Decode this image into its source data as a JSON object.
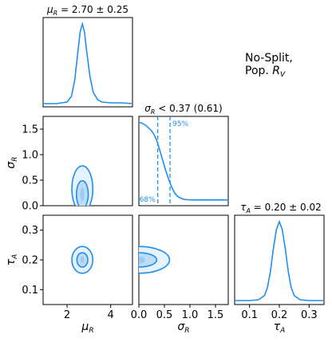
{
  "note": {
    "line1": "No-Split,",
    "line2_pre": "Pop. ",
    "line2_sym": "R",
    "line2_sub": "V"
  },
  "colors": {
    "line": "#1f8ef1",
    "fill_outer": "#e6f2fd",
    "fill_inner": "#bfdcf7",
    "core": "#5aa9f0"
  },
  "chart_data": [
    {
      "type": "line",
      "panel": "mu_R marginal",
      "title_sym": "μ",
      "title_sub": "R",
      "title_rest": " = 2.70 ± 0.25",
      "xlim": [
        0.9,
        5.0
      ],
      "x": [
        0.9,
        1.5,
        2.0,
        2.2,
        2.35,
        2.5,
        2.6,
        2.7,
        2.8,
        2.9,
        3.05,
        3.2,
        3.4,
        3.6,
        4.0,
        4.5,
        5.0
      ],
      "y": [
        0.01,
        0.01,
        0.03,
        0.1,
        0.3,
        0.66,
        0.9,
        1.0,
        0.9,
        0.66,
        0.35,
        0.15,
        0.06,
        0.03,
        0.02,
        0.02,
        0.01
      ]
    },
    {
      "type": "line",
      "panel": "sigma_R marginal",
      "title_sym": "σ",
      "title_sub": "R",
      "title_rest": " < 0.37 (0.61)",
      "xlim": [
        0.0,
        1.75
      ],
      "x": [
        0.0,
        0.05,
        0.1,
        0.15,
        0.2,
        0.25,
        0.3,
        0.35,
        0.4,
        0.45,
        0.5,
        0.55,
        0.6,
        0.65,
        0.7,
        0.75,
        0.8,
        0.85,
        0.9,
        0.95,
        1.0,
        1.1,
        1.2,
        1.4,
        1.6,
        1.75
      ],
      "y": [
        1.0,
        1.0,
        0.98,
        0.96,
        0.93,
        0.9,
        0.85,
        0.78,
        0.68,
        0.57,
        0.46,
        0.36,
        0.27,
        0.19,
        0.13,
        0.09,
        0.07,
        0.055,
        0.048,
        0.045,
        0.043,
        0.042,
        0.042,
        0.042,
        0.042,
        0.042
      ],
      "percentiles": [
        {
          "label": "68%",
          "x": 0.37
        },
        {
          "label": "95%",
          "x": 0.61
        }
      ]
    },
    {
      "type": "line",
      "panel": "tau_A marginal",
      "title_sym": "τ",
      "title_sub": "A",
      "title_rest": " = 0.20 ± 0.02",
      "xlim": [
        0.05,
        0.35
      ],
      "x": [
        0.05,
        0.1,
        0.13,
        0.15,
        0.16,
        0.17,
        0.18,
        0.19,
        0.2,
        0.21,
        0.22,
        0.23,
        0.24,
        0.25,
        0.27,
        0.3,
        0.35
      ],
      "y": [
        0.02,
        0.02,
        0.03,
        0.08,
        0.18,
        0.38,
        0.66,
        0.9,
        1.0,
        0.9,
        0.66,
        0.38,
        0.18,
        0.08,
        0.03,
        0.02,
        0.02
      ]
    },
    {
      "type": "scatter",
      "panel": "sigma_R vs mu_R",
      "xlim": [
        0.9,
        5.0
      ],
      "ylim": [
        0.0,
        1.75
      ],
      "contours": [
        {
          "level": "outer",
          "cx": 2.7,
          "cy": 0.33,
          "rx": 0.48,
          "ry": 0.45
        },
        {
          "level": "inner",
          "cx": 2.7,
          "cy": 0.22,
          "rx": 0.27,
          "ry": 0.27
        }
      ]
    },
    {
      "type": "scatter",
      "panel": "tau_A vs mu_R",
      "xlim": [
        0.9,
        5.0
      ],
      "ylim": [
        0.05,
        0.35
      ],
      "contours": [
        {
          "level": "outer",
          "cx": 2.7,
          "cy": 0.2,
          "rx": 0.48,
          "ry": 0.045
        },
        {
          "level": "inner",
          "cx": 2.7,
          "cy": 0.2,
          "rx": 0.25,
          "ry": 0.024
        }
      ]
    },
    {
      "type": "scatter",
      "panel": "tau_A vs sigma_R",
      "xlim": [
        0.0,
        1.75
      ],
      "ylim": [
        0.05,
        0.35
      ],
      "contours": [
        {
          "level": "outer",
          "cx": 0.0,
          "cy": 0.2,
          "rx": 0.6,
          "ry": 0.045
        },
        {
          "level": "inner",
          "cx": 0.0,
          "cy": 0.2,
          "rx": 0.35,
          "ry": 0.024
        }
      ]
    }
  ],
  "axes": {
    "mu_R": {
      "label_sym": "μ",
      "label_sub": "R",
      "ticks": [
        {
          "v": 2,
          "t": "2"
        },
        {
          "v": 4,
          "t": "4"
        }
      ]
    },
    "sigma_R_x": {
      "label_sym": "σ",
      "label_sub": "R",
      "ticks": [
        {
          "v": 0.0,
          "t": "0.0"
        },
        {
          "v": 0.5,
          "t": "0.5"
        },
        {
          "v": 1.0,
          "t": "1.0"
        },
        {
          "v": 1.5,
          "t": "1.5"
        }
      ]
    },
    "sigma_R_y": {
      "label_sym": "σ",
      "label_sub": "R",
      "ticks": [
        {
          "v": 0.0,
          "t": "0.0"
        },
        {
          "v": 0.5,
          "t": "0.5"
        },
        {
          "v": 1.0,
          "t": "1.0"
        },
        {
          "v": 1.5,
          "t": "1.5"
        }
      ]
    },
    "tau_A_x": {
      "label_sym": "τ",
      "label_sub": "A",
      "ticks": [
        {
          "v": 0.1,
          "t": "0.1"
        },
        {
          "v": 0.2,
          "t": "0.2"
        },
        {
          "v": 0.3,
          "t": "0.3"
        }
      ]
    },
    "tau_A_y": {
      "label_sym": "τ",
      "label_sub": "A",
      "ticks": [
        {
          "v": 0.1,
          "t": "0.1"
        },
        {
          "v": 0.2,
          "t": "0.2"
        },
        {
          "v": 0.3,
          "t": "0.3"
        }
      ]
    }
  }
}
